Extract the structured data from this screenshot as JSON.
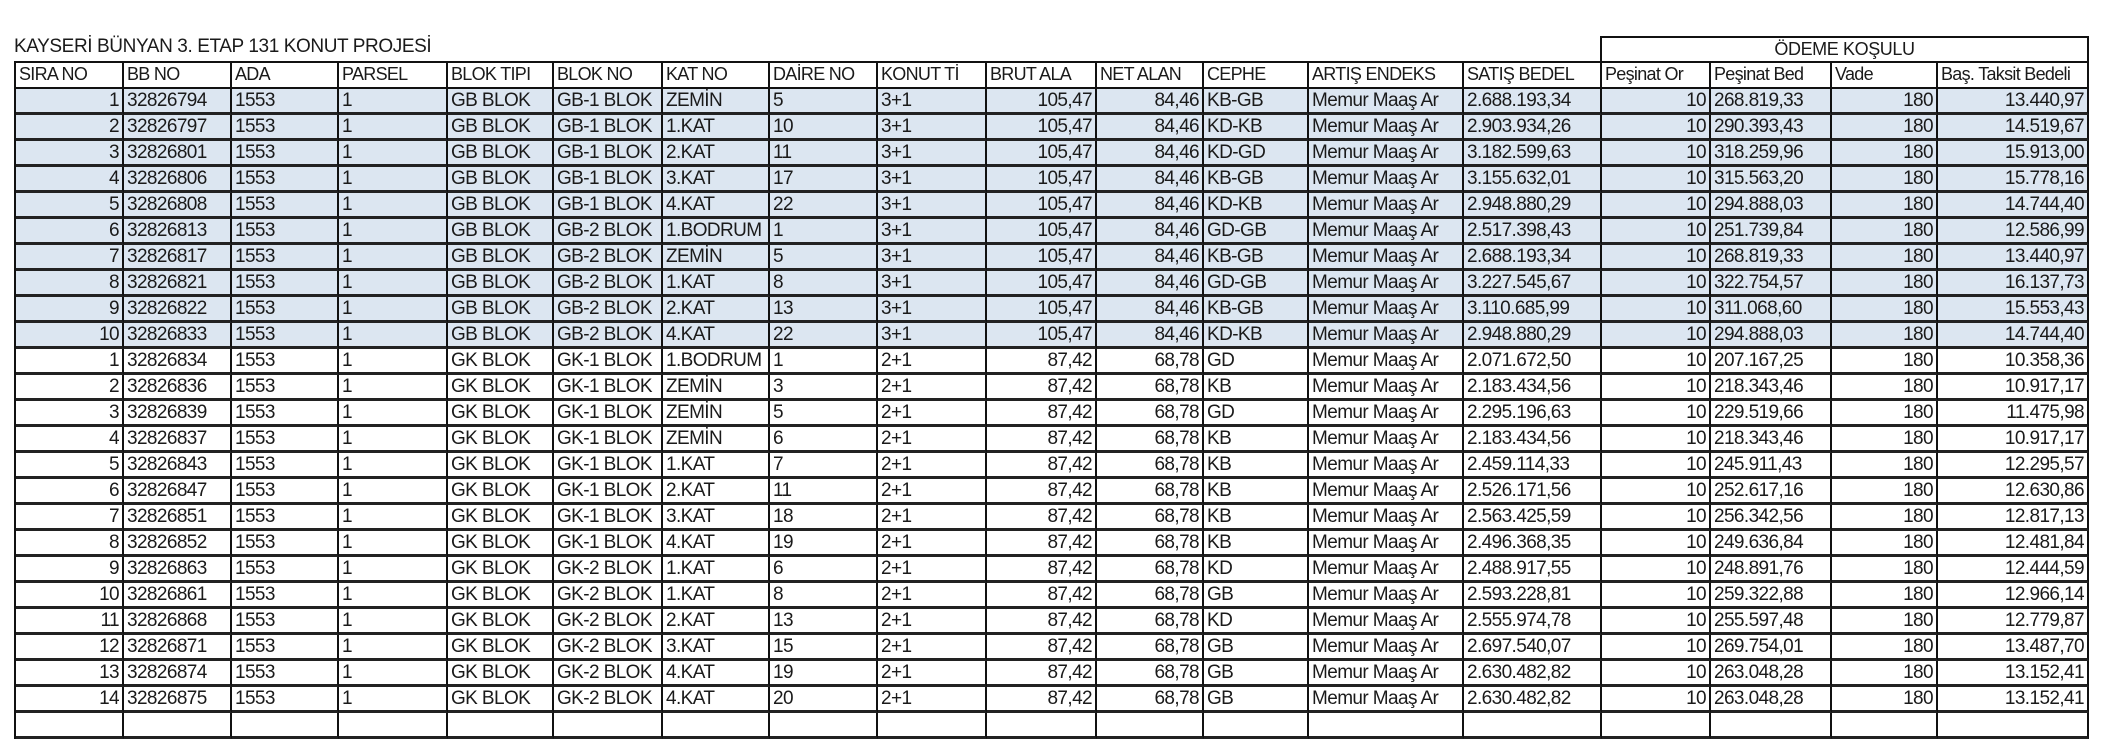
{
  "title": "KAYSERİ BÜNYAN 3. ETAP 131 KONUT PROJESİ",
  "group_header": "ÖDEME KOŞULU",
  "highlight_color": "#dce6f1",
  "headers": [
    "SIRA NO",
    "BB NO",
    "ADA",
    "PARSEL",
    "BLOK TIPI",
    "BLOK NO",
    "KAT NO",
    "DAİRE NO",
    "KONUT Tİ",
    "BRUT ALA",
    "NET ALAN",
    "CEPHE",
    "ARTIŞ ENDEKS",
    "SATIŞ BEDEL",
    "Peşinat Or",
    "Peşinat Bed",
    "Vade",
    "Baş. Taksit Bedeli"
  ],
  "rows": [
    [
      "1",
      "32826794",
      "1553",
      "1",
      "GB BLOK",
      "GB-1 BLOK",
      "ZEMİN",
      "5",
      "3+1",
      "105,47",
      "84,46",
      "KB-GB",
      "Memur Maaş Ar",
      "2.688.193,34",
      "10",
      "268.819,33",
      "180",
      "13.440,97"
    ],
    [
      "2",
      "32826797",
      "1553",
      "1",
      "GB BLOK",
      "GB-1 BLOK",
      "1.KAT",
      "10",
      "3+1",
      "105,47",
      "84,46",
      "KD-KB",
      "Memur Maaş Ar",
      "2.903.934,26",
      "10",
      "290.393,43",
      "180",
      "14.519,67"
    ],
    [
      "3",
      "32826801",
      "1553",
      "1",
      "GB BLOK",
      "GB-1 BLOK",
      "2.KAT",
      "11",
      "3+1",
      "105,47",
      "84,46",
      "KD-GD",
      "Memur Maaş Ar",
      "3.182.599,63",
      "10",
      "318.259,96",
      "180",
      "15.913,00"
    ],
    [
      "4",
      "32826806",
      "1553",
      "1",
      "GB BLOK",
      "GB-1 BLOK",
      "3.KAT",
      "17",
      "3+1",
      "105,47",
      "84,46",
      "KB-GB",
      "Memur Maaş Ar",
      "3.155.632,01",
      "10",
      "315.563,20",
      "180",
      "15.778,16"
    ],
    [
      "5",
      "32826808",
      "1553",
      "1",
      "GB BLOK",
      "GB-1 BLOK",
      "4.KAT",
      "22",
      "3+1",
      "105,47",
      "84,46",
      "KD-KB",
      "Memur Maaş Ar",
      "2.948.880,29",
      "10",
      "294.888,03",
      "180",
      "14.744,40"
    ],
    [
      "6",
      "32826813",
      "1553",
      "1",
      "GB BLOK",
      "GB-2 BLOK",
      "1.BODRUM",
      "1",
      "3+1",
      "105,47",
      "84,46",
      "GD-GB",
      "Memur Maaş Ar",
      "2.517.398,43",
      "10",
      "251.739,84",
      "180",
      "12.586,99"
    ],
    [
      "7",
      "32826817",
      "1553",
      "1",
      "GB BLOK",
      "GB-2 BLOK",
      "ZEMİN",
      "5",
      "3+1",
      "105,47",
      "84,46",
      "KB-GB",
      "Memur Maaş Ar",
      "2.688.193,34",
      "10",
      "268.819,33",
      "180",
      "13.440,97"
    ],
    [
      "8",
      "32826821",
      "1553",
      "1",
      "GB BLOK",
      "GB-2 BLOK",
      "1.KAT",
      "8",
      "3+1",
      "105,47",
      "84,46",
      "GD-GB",
      "Memur Maaş Ar",
      "3.227.545,67",
      "10",
      "322.754,57",
      "180",
      "16.137,73"
    ],
    [
      "9",
      "32826822",
      "1553",
      "1",
      "GB BLOK",
      "GB-2 BLOK",
      "2.KAT",
      "13",
      "3+1",
      "105,47",
      "84,46",
      "KB-GB",
      "Memur Maaş Ar",
      "3.110.685,99",
      "10",
      "311.068,60",
      "180",
      "15.553,43"
    ],
    [
      "10",
      "32826833",
      "1553",
      "1",
      "GB BLOK",
      "GB-2 BLOK",
      "4.KAT",
      "22",
      "3+1",
      "105,47",
      "84,46",
      "KD-KB",
      "Memur Maaş Ar",
      "2.948.880,29",
      "10",
      "294.888,03",
      "180",
      "14.744,40"
    ],
    [
      "1",
      "32826834",
      "1553",
      "1",
      "GK BLOK",
      "GK-1 BLOK",
      "1.BODRUM",
      "1",
      "2+1",
      "87,42",
      "68,78",
      "GD",
      "Memur Maaş Ar",
      "2.071.672,50",
      "10",
      "207.167,25",
      "180",
      "10.358,36"
    ],
    [
      "2",
      "32826836",
      "1553",
      "1",
      "GK BLOK",
      "GK-1 BLOK",
      "ZEMİN",
      "3",
      "2+1",
      "87,42",
      "68,78",
      "KB",
      "Memur Maaş Ar",
      "2.183.434,56",
      "10",
      "218.343,46",
      "180",
      "10.917,17"
    ],
    [
      "3",
      "32826839",
      "1553",
      "1",
      "GK BLOK",
      "GK-1 BLOK",
      "ZEMİN",
      "5",
      "2+1",
      "87,42",
      "68,78",
      "GD",
      "Memur Maaş Ar",
      "2.295.196,63",
      "10",
      "229.519,66",
      "180",
      "11.475,98"
    ],
    [
      "4",
      "32826837",
      "1553",
      "1",
      "GK BLOK",
      "GK-1 BLOK",
      "ZEMİN",
      "6",
      "2+1",
      "87,42",
      "68,78",
      "KB",
      "Memur Maaş Ar",
      "2.183.434,56",
      "10",
      "218.343,46",
      "180",
      "10.917,17"
    ],
    [
      "5",
      "32826843",
      "1553",
      "1",
      "GK BLOK",
      "GK-1 BLOK",
      "1.KAT",
      "7",
      "2+1",
      "87,42",
      "68,78",
      "KB",
      "Memur Maaş Ar",
      "2.459.114,33",
      "10",
      "245.911,43",
      "180",
      "12.295,57"
    ],
    [
      "6",
      "32826847",
      "1553",
      "1",
      "GK BLOK",
      "GK-1 BLOK",
      "2.KAT",
      "11",
      "2+1",
      "87,42",
      "68,78",
      "KB",
      "Memur Maaş Ar",
      "2.526.171,56",
      "10",
      "252.617,16",
      "180",
      "12.630,86"
    ],
    [
      "7",
      "32826851",
      "1553",
      "1",
      "GK BLOK",
      "GK-1 BLOK",
      "3.KAT",
      "18",
      "2+1",
      "87,42",
      "68,78",
      "KB",
      "Memur Maaş Ar",
      "2.563.425,59",
      "10",
      "256.342,56",
      "180",
      "12.817,13"
    ],
    [
      "8",
      "32826852",
      "1553",
      "1",
      "GK BLOK",
      "GK-1 BLOK",
      "4.KAT",
      "19",
      "2+1",
      "87,42",
      "68,78",
      "KB",
      "Memur Maaş Ar",
      "2.496.368,35",
      "10",
      "249.636,84",
      "180",
      "12.481,84"
    ],
    [
      "9",
      "32826863",
      "1553",
      "1",
      "GK BLOK",
      "GK-2 BLOK",
      "1.KAT",
      "6",
      "2+1",
      "87,42",
      "68,78",
      "KD",
      "Memur Maaş Ar",
      "2.488.917,55",
      "10",
      "248.891,76",
      "180",
      "12.444,59"
    ],
    [
      "10",
      "32826861",
      "1553",
      "1",
      "GK BLOK",
      "GK-2 BLOK",
      "1.KAT",
      "8",
      "2+1",
      "87,42",
      "68,78",
      "GB",
      "Memur Maaş Ar",
      "2.593.228,81",
      "10",
      "259.322,88",
      "180",
      "12.966,14"
    ],
    [
      "11",
      "32826868",
      "1553",
      "1",
      "GK BLOK",
      "GK-2 BLOK",
      "2.KAT",
      "13",
      "2+1",
      "87,42",
      "68,78",
      "KD",
      "Memur Maaş Ar",
      "2.555.974,78",
      "10",
      "255.597,48",
      "180",
      "12.779,87"
    ],
    [
      "12",
      "32826871",
      "1553",
      "1",
      "GK BLOK",
      "GK-2 BLOK",
      "3.KAT",
      "15",
      "2+1",
      "87,42",
      "68,78",
      "GB",
      "Memur Maaş Ar",
      "2.697.540,07",
      "10",
      "269.754,01",
      "180",
      "13.487,70"
    ],
    [
      "13",
      "32826874",
      "1553",
      "1",
      "GK BLOK",
      "GK-2 BLOK",
      "4.KAT",
      "19",
      "2+1",
      "87,42",
      "68,78",
      "GB",
      "Memur Maaş Ar",
      "2.630.482,82",
      "10",
      "263.048,28",
      "180",
      "13.152,41"
    ],
    [
      "14",
      "32826875",
      "1553",
      "1",
      "GK BLOK",
      "GK-2 BLOK",
      "4.KAT",
      "20",
      "2+1",
      "87,42",
      "68,78",
      "GB",
      "Memur Maaş Ar",
      "2.630.482,82",
      "10",
      "263.048,28",
      "180",
      "13.152,41"
    ]
  ],
  "highlighted_row_count": 10
}
